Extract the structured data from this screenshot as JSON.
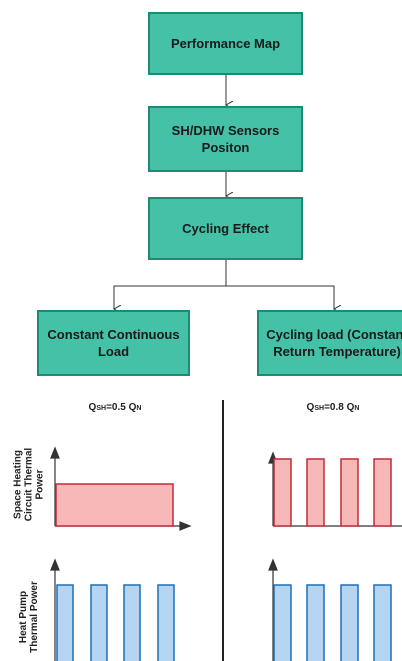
{
  "nodes": [
    {
      "label": "Performance Map"
    },
    {
      "label": "SH/DHW Sensors Positon"
    },
    {
      "label": "Cycling Effect"
    },
    {
      "label": "Constant Continuous Load"
    },
    {
      "label": "Cycling load (Constant Return Temperature)"
    }
  ],
  "panels": [
    {
      "title": [
        "Q",
        "SH",
        "=0.5 Q",
        "N"
      ]
    },
    {
      "title": [
        "Q",
        "SH",
        "=0.8 Q",
        "N"
      ]
    }
  ],
  "y_labels": [
    "Space Heating Circuit Thermal Power",
    "Heat Pump Thermal Power"
  ]
}
